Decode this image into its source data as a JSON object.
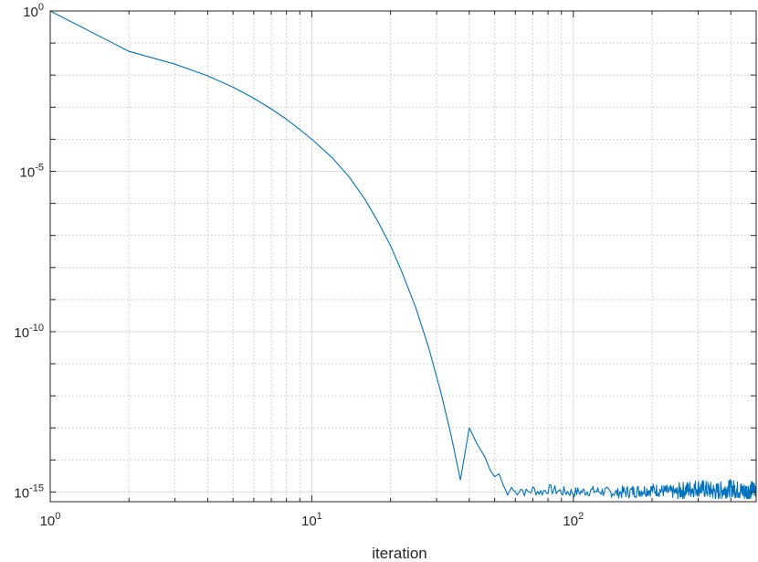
{
  "chart_data": {
    "type": "line",
    "xscale": "log",
    "yscale": "log",
    "xlabel": "iteration",
    "ylabel": "",
    "title": "",
    "xlim": [
      1,
      500
    ],
    "ylim": [
      5e-16,
      1
    ],
    "grid": true,
    "line_color": "#0072BD",
    "x_ticks": [
      {
        "base": "10",
        "exp": "0",
        "value": 1
      },
      {
        "base": "10",
        "exp": "1",
        "value": 10
      },
      {
        "base": "10",
        "exp": "2",
        "value": 100
      }
    ],
    "y_ticks": [
      {
        "base": "10",
        "exp": "0",
        "value": 1
      },
      {
        "base": "10",
        "exp": "-5",
        "value": 1e-05
      },
      {
        "base": "10",
        "exp": "-10",
        "value": 1e-10
      },
      {
        "base": "10",
        "exp": "-15",
        "value": 1e-15
      }
    ],
    "series": [
      {
        "x": [
          1,
          2,
          3,
          4,
          5,
          6,
          7,
          8,
          9,
          10,
          12,
          14,
          16,
          18,
          20,
          22,
          25,
          28,
          31,
          34,
          37,
          40,
          43,
          46,
          48,
          50,
          52,
          54,
          55,
          56,
          58,
          60,
          63,
          66,
          70,
          75,
          80,
          90,
          100,
          120,
          150,
          200,
          250,
          300,
          350,
          400,
          450,
          500
        ],
        "y": [
          1,
          0.055,
          0.022,
          0.0095,
          0.0042,
          0.0019,
          0.00088,
          0.00042,
          0.0002,
          0.0001,
          2.6e-05,
          6.2e-06,
          1.3e-06,
          2.5e-07,
          4.8e-08,
          8e-09,
          5.5e-10,
          3.1e-11,
          1.5e-12,
          6.5e-14,
          2.4e-15,
          1e-13,
          3e-14,
          1.2e-14,
          5e-15,
          3e-15,
          3.7e-15,
          1.6e-15,
          1.2e-15,
          8e-16,
          1.4e-15,
          9e-16,
          1.5e-15,
          8e-16,
          1.3e-15,
          9e-16,
          1.4e-15,
          1e-15,
          9e-16,
          1.1e-15,
          8e-16,
          1.2e-15,
          8e-16,
          1.4e-15,
          8e-16,
          1.3e-15,
          8e-16,
          1.2e-15
        ]
      }
    ]
  }
}
